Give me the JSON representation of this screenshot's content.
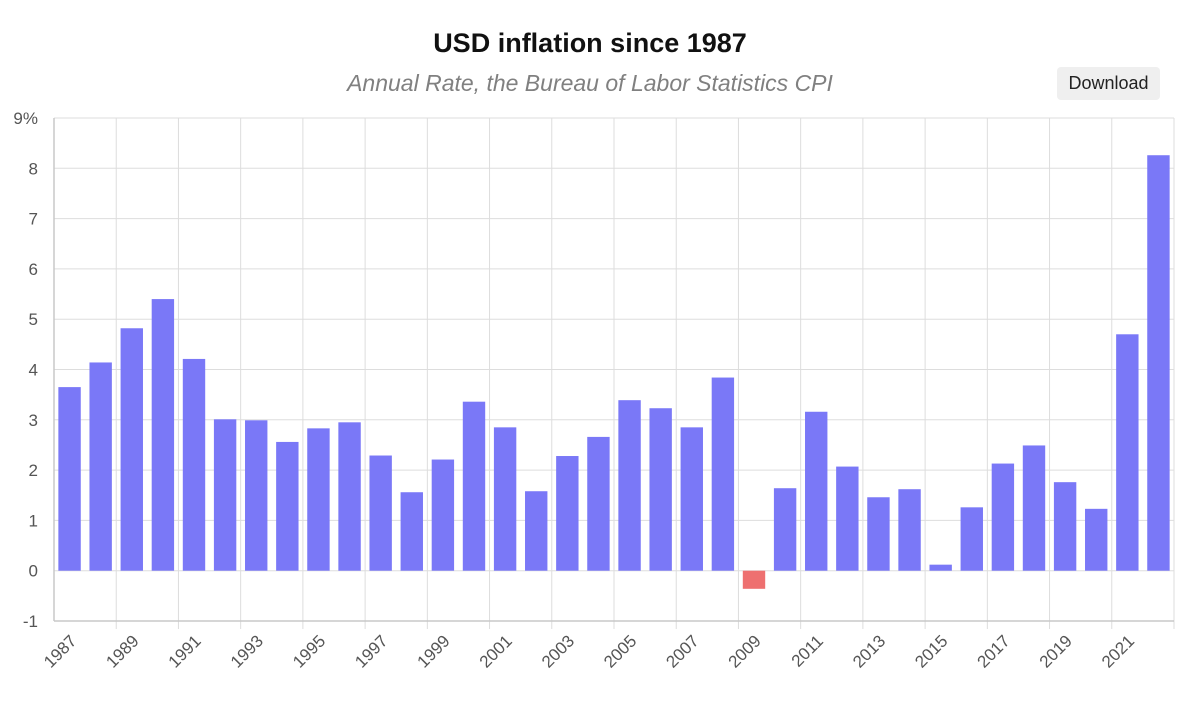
{
  "header": {
    "title": "USD inflation since 1987",
    "subtitle": "Annual Rate, the Bureau of Labor Statistics CPI",
    "download_label": "Download"
  },
  "colors": {
    "positive": "#7a78f7",
    "negative": "#ee7070"
  },
  "chart_data": {
    "type": "bar",
    "title": "USD inflation since 1987",
    "subtitle": "Annual Rate, the Bureau of Labor Statistics CPI",
    "xlabel": "",
    "ylabel": "",
    "ylim": [
      -1,
      9
    ],
    "y_ticks": [
      "-1",
      "0",
      "1",
      "2",
      "3",
      "4",
      "5",
      "6",
      "7",
      "8",
      "9%"
    ],
    "grid": true,
    "categories": [
      "1987",
      "1988",
      "1989",
      "1990",
      "1991",
      "1992",
      "1993",
      "1994",
      "1995",
      "1996",
      "1997",
      "1998",
      "1999",
      "2000",
      "2001",
      "2002",
      "2003",
      "2004",
      "2005",
      "2006",
      "2007",
      "2008",
      "2009",
      "2010",
      "2011",
      "2012",
      "2013",
      "2014",
      "2015",
      "2016",
      "2017",
      "2018",
      "2019",
      "2020",
      "2021",
      "2022"
    ],
    "x_tick_labels": [
      "1987",
      "1989",
      "1991",
      "1993",
      "1995",
      "1997",
      "1999",
      "2001",
      "2003",
      "2005",
      "2007",
      "2009",
      "2011",
      "2013",
      "2015",
      "2017",
      "2019",
      "2021"
    ],
    "values": [
      3.65,
      4.14,
      4.82,
      5.4,
      4.21,
      3.01,
      2.99,
      2.56,
      2.83,
      2.95,
      2.29,
      1.56,
      2.21,
      3.36,
      2.85,
      1.58,
      2.28,
      2.66,
      3.39,
      3.23,
      2.85,
      3.84,
      -0.36,
      1.64,
      3.16,
      2.07,
      1.46,
      1.62,
      0.12,
      1.26,
      2.13,
      2.49,
      1.76,
      1.23,
      4.7,
      8.26
    ]
  }
}
